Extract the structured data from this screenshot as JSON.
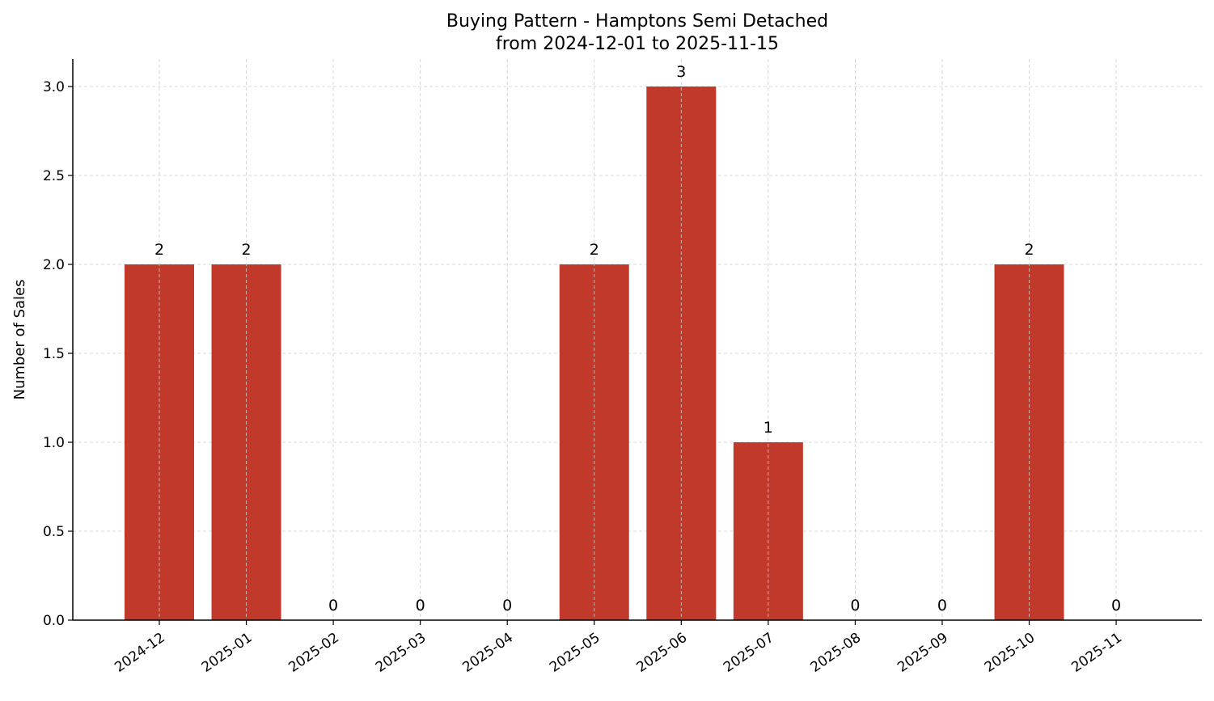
{
  "chart_data": {
    "type": "bar",
    "title": "Buying Pattern - Hamptons Semi Detached",
    "subtitle": "from 2024-12-01 to 2025-11-15",
    "xlabel": "",
    "ylabel": "Number of Sales",
    "categories": [
      "2024-12",
      "2025-01",
      "2025-02",
      "2025-03",
      "2025-04",
      "2025-05",
      "2025-06",
      "2025-07",
      "2025-08",
      "2025-09",
      "2025-10",
      "2025-11"
    ],
    "values": [
      2,
      2,
      0,
      0,
      0,
      2,
      3,
      1,
      0,
      0,
      2,
      0
    ],
    "data_labels": [
      "2",
      "2",
      "0",
      "0",
      "0",
      "2",
      "3",
      "1",
      "0",
      "0",
      "2",
      "0"
    ],
    "ylim": [
      0,
      3.15
    ],
    "yticks": [
      0.0,
      0.5,
      1.0,
      1.5,
      2.0,
      2.5,
      3.0
    ],
    "ytick_labels": [
      "0.0",
      "0.5",
      "1.0",
      "1.5",
      "2.0",
      "2.5",
      "3.0"
    ],
    "grid": true,
    "bar_color": "#c0392b"
  }
}
